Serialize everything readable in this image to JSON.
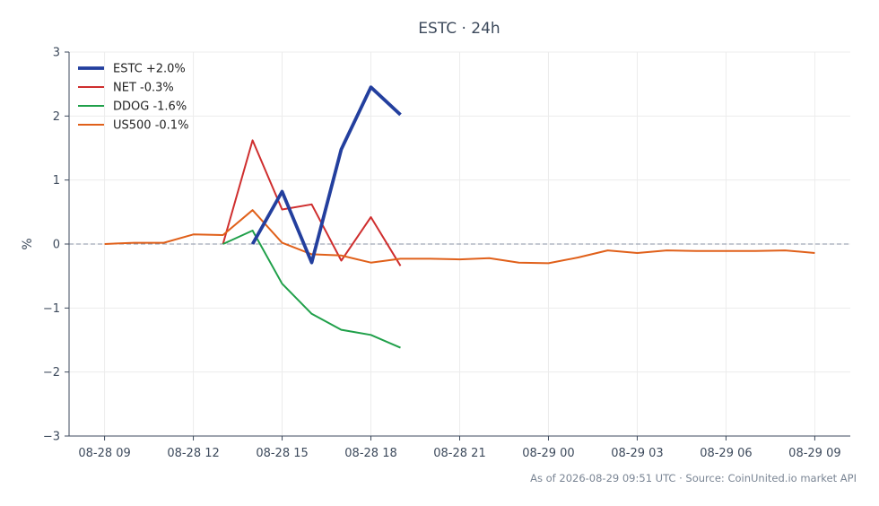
{
  "chart_data": {
    "type": "line",
    "title": "ESTC · 24h",
    "ylabel": "%",
    "ylim": [
      -3,
      3
    ],
    "yticks": [
      -3,
      -2,
      -1,
      0,
      1,
      2,
      3
    ],
    "ytick_labels": [
      "−3",
      "−2",
      "−1",
      "0",
      "1",
      "2",
      "3"
    ],
    "xlim": [
      "2026-08-28 07:48",
      "2026-08-29 10:12"
    ],
    "xticks": [
      "2026-08-28 09:00",
      "2026-08-28 12:00",
      "2026-08-28 15:00",
      "2026-08-28 18:00",
      "2026-08-28 21:00",
      "2026-08-29 00:00",
      "2026-08-29 03:00",
      "2026-08-29 06:00",
      "2026-08-29 09:00"
    ],
    "xtick_labels": [
      "08-28 09",
      "08-28 12",
      "08-28 15",
      "08-28 18",
      "08-28 21",
      "08-29 00",
      "08-29 03",
      "08-29 06",
      "08-29 09"
    ],
    "grid": true,
    "legend_position": "top-left",
    "zero_line": true,
    "series": [
      {
        "name": "ESTC +2.0%",
        "color": "#233f9e",
        "emphasis": true,
        "points": [
          {
            "x": "2026-08-28 14:00",
            "y": 0.0
          },
          {
            "x": "2026-08-28 15:00",
            "y": 0.82
          },
          {
            "x": "2026-08-28 16:00",
            "y": -0.29
          },
          {
            "x": "2026-08-28 17:00",
            "y": 1.48
          },
          {
            "x": "2026-08-28 18:00",
            "y": 2.45
          },
          {
            "x": "2026-08-28 19:00",
            "y": 2.02
          }
        ]
      },
      {
        "name": "NET -0.3%",
        "color": "#cf2e2e",
        "points": [
          {
            "x": "2026-08-28 13:00",
            "y": 0.0
          },
          {
            "x": "2026-08-28 14:00",
            "y": 1.62
          },
          {
            "x": "2026-08-28 15:00",
            "y": 0.54
          },
          {
            "x": "2026-08-28 16:00",
            "y": 0.62
          },
          {
            "x": "2026-08-28 17:00",
            "y": -0.26
          },
          {
            "x": "2026-08-28 18:00",
            "y": 0.42
          },
          {
            "x": "2026-08-28 19:00",
            "y": -0.34
          }
        ]
      },
      {
        "name": "DDOG -1.6%",
        "color": "#20a04a",
        "points": [
          {
            "x": "2026-08-28 13:00",
            "y": 0.0
          },
          {
            "x": "2026-08-28 14:00",
            "y": 0.21
          },
          {
            "x": "2026-08-28 15:00",
            "y": -0.62
          },
          {
            "x": "2026-08-28 16:00",
            "y": -1.09
          },
          {
            "x": "2026-08-28 17:00",
            "y": -1.34
          },
          {
            "x": "2026-08-28 18:00",
            "y": -1.42
          },
          {
            "x": "2026-08-28 19:00",
            "y": -1.62
          }
        ]
      },
      {
        "name": "US500 -0.1%",
        "color": "#e0601a",
        "points": [
          {
            "x": "2026-08-28 09:00",
            "y": 0.0
          },
          {
            "x": "2026-08-28 10:00",
            "y": 0.02
          },
          {
            "x": "2026-08-28 11:00",
            "y": 0.02
          },
          {
            "x": "2026-08-28 12:00",
            "y": 0.15
          },
          {
            "x": "2026-08-28 13:00",
            "y": 0.14
          },
          {
            "x": "2026-08-28 14:00",
            "y": 0.53
          },
          {
            "x": "2026-08-28 15:00",
            "y": 0.02
          },
          {
            "x": "2026-08-28 16:00",
            "y": -0.16
          },
          {
            "x": "2026-08-28 17:00",
            "y": -0.18
          },
          {
            "x": "2026-08-28 18:00",
            "y": -0.29
          },
          {
            "x": "2026-08-28 19:00",
            "y": -0.23
          },
          {
            "x": "2026-08-28 20:00",
            "y": -0.23
          },
          {
            "x": "2026-08-28 21:00",
            "y": -0.24
          },
          {
            "x": "2026-08-28 22:00",
            "y": -0.22
          },
          {
            "x": "2026-08-28 23:00",
            "y": -0.29
          },
          {
            "x": "2026-08-29 00:00",
            "y": -0.3
          },
          {
            "x": "2026-08-29 01:00",
            "y": -0.21
          },
          {
            "x": "2026-08-29 02:00",
            "y": -0.1
          },
          {
            "x": "2026-08-29 03:00",
            "y": -0.14
          },
          {
            "x": "2026-08-29 04:00",
            "y": -0.1
          },
          {
            "x": "2026-08-29 05:00",
            "y": -0.11
          },
          {
            "x": "2026-08-29 06:00",
            "y": -0.11
          },
          {
            "x": "2026-08-29 07:00",
            "y": -0.11
          },
          {
            "x": "2026-08-29 08:00",
            "y": -0.1
          },
          {
            "x": "2026-08-29 09:00",
            "y": -0.14
          }
        ]
      }
    ]
  },
  "footer": {
    "text": "As of 2026-08-29 09:51 UTC · Source: CoinUnited.io market API"
  },
  "colors": {
    "axis": "#3d4a5c",
    "grid": "#ececec",
    "zero_line": "#8a93a6"
  }
}
